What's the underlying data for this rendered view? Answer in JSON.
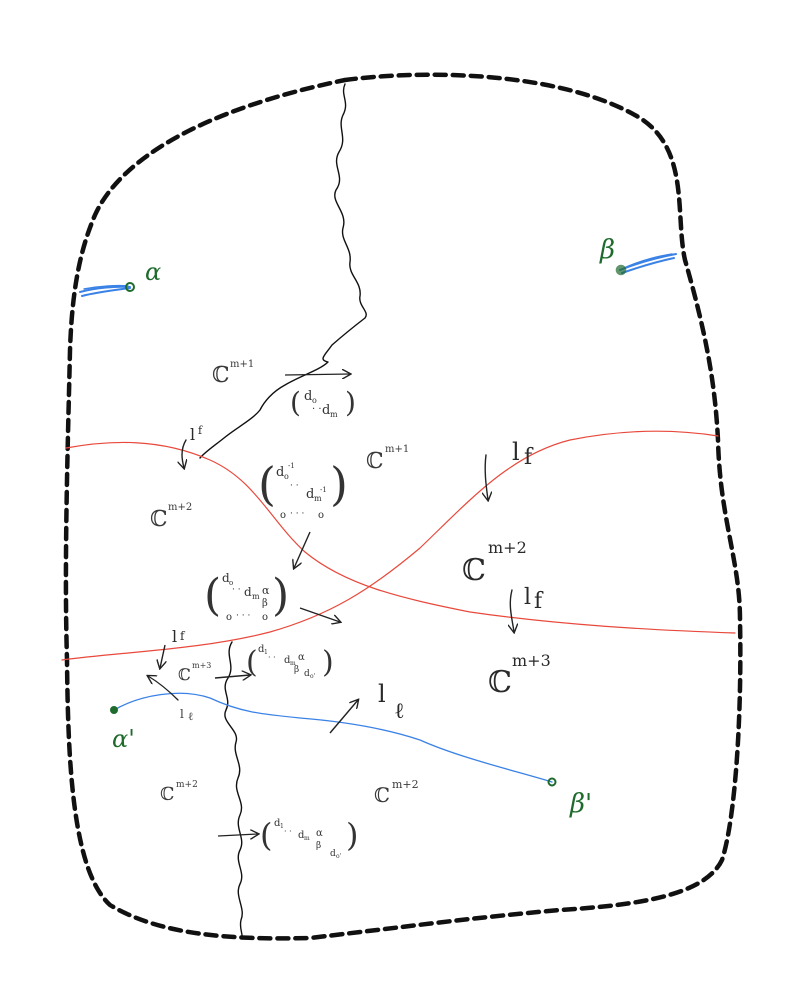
{
  "colors": {
    "boundary": "#111111",
    "cut": "#111111",
    "red_curve": "#e8493c",
    "blue_curve": "#3b82e6",
    "point": "#1f6b2e",
    "green_label": "#1f6b2e",
    "ink": "#222222"
  },
  "points": {
    "alpha": "α",
    "beta": "β",
    "alpha_prime": "α'",
    "beta_prime": "β'"
  },
  "regions": {
    "c_m1_top_left": "ℂ",
    "c_m1_top_left_sup": "m+1",
    "c_m1_mid_right": "ℂ",
    "c_m1_mid_right_sup": "m+1",
    "c_m2_left": "ℂ",
    "c_m2_left_sup": "m+2",
    "c_m2_right": "ℂ",
    "c_m2_right_sup": "m+2",
    "c_m3_center": "ℂ",
    "c_m3_center_sup": "m+3",
    "c_m3_right": "ℂ",
    "c_m3_right_sup": "m+3",
    "c_m2_bottom_left": "ℂ",
    "c_m2_bottom_left_sup": "m+2",
    "c_m2_bottom_right": "ℂ",
    "c_m2_bottom_right_sup": "m+2"
  },
  "labels": {
    "lf_upper_left": "l",
    "lf_upper_left_sub": "f",
    "lf_right_upper": "l",
    "lf_right_upper_sub": "f",
    "lf_right_lower": "l",
    "lf_right_lower_sub": "f",
    "lf_lower_left": "l",
    "lf_lower_left_sub": "f",
    "ll_small": "l",
    "ll_small_sub": "ℓ",
    "ll_large": "l",
    "ll_large_sub": "ℓ"
  },
  "matrices": {
    "m1": {
      "open": "(",
      "close": ")",
      "d0": "d",
      "d0_sub": "o",
      "dots": "· ·",
      "dm": "d",
      "dm_sub": "m"
    },
    "m2": {
      "open": "(",
      "close": ")",
      "d0": "d",
      "d0_sub": "o",
      "d0_sup": "-1",
      "dots": "·  ·",
      "dm": "d",
      "dm_sub": "m",
      "dm_sup": "-1",
      "zero_left": "o",
      "zero_dots": "·  ·  ·",
      "zero_right": "o"
    },
    "m3": {
      "open": "(",
      "close": ")",
      "d0": "d",
      "d0_sub": "o",
      "dots": "· ·",
      "dm": "d",
      "dm_sub": "m",
      "alpha": "α",
      "beta": "β",
      "zero_left": "o",
      "zero_dots": "· · ·",
      "zero_right": "o"
    },
    "m4": {
      "open": "(",
      "close": ")",
      "d1": "d",
      "d1_sub": "1",
      "dots": "· ·",
      "dm": "d",
      "dm_sub": "m",
      "alpha": "α",
      "beta": "β",
      "d0p": "d",
      "d0p_sub": "o'"
    },
    "m5": {
      "open": "(",
      "close": ")",
      "d1": "d",
      "d1_sub": "1",
      "dots": "· ·",
      "dm": "d",
      "dm_sub": "m",
      "alpha": "α",
      "beta": "β",
      "d0p": "d",
      "d0p_sub": "o'"
    }
  }
}
